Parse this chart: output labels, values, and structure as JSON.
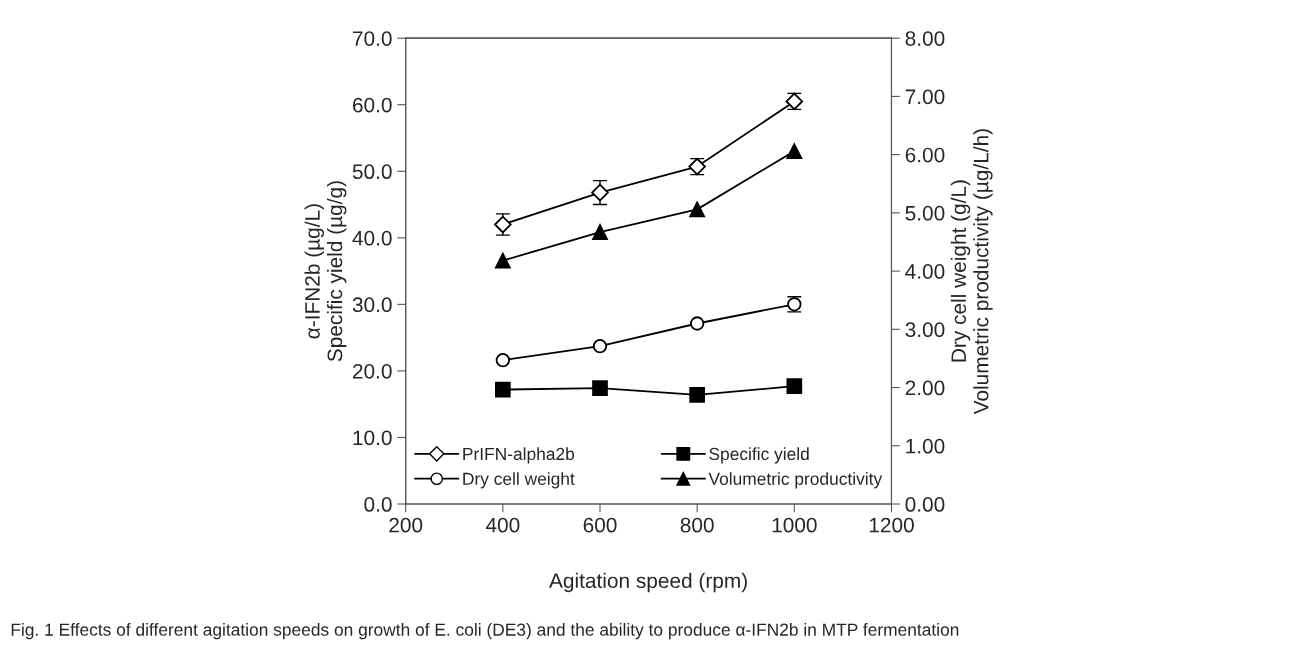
{
  "chart_data": {
    "type": "line",
    "x": [
      400,
      600,
      800,
      1000
    ],
    "xlabel": "Agitation speed (rpm)",
    "ylabel": "α-IFN2b (µg/L)\nSpecific yield (µg/g)",
    "y2label": "Dry cell weight (g/L)\nVolumetric productivity (µg/L/h)",
    "xlim": [
      200,
      1200
    ],
    "xticks": [
      200,
      400,
      600,
      800,
      1000,
      1200
    ],
    "ylim": [
      0,
      70
    ],
    "yticks": [
      {
        "value": 0,
        "label": "0.0"
      },
      {
        "value": 10,
        "label": "10.0"
      },
      {
        "value": 20,
        "label": "20.0"
      },
      {
        "value": 30,
        "label": "30.0"
      },
      {
        "value": 40,
        "label": "40.0"
      },
      {
        "value": 50,
        "label": "50.0"
      },
      {
        "value": 60,
        "label": "60.0"
      },
      {
        "value": 70,
        "label": "70.0"
      }
    ],
    "y2lim": [
      0,
      8
    ],
    "y2ticks": [
      {
        "value": 0,
        "label": "0.00"
      },
      {
        "value": 1,
        "label": "1.00"
      },
      {
        "value": 2,
        "label": "2.00"
      },
      {
        "value": 3,
        "label": "3.00"
      },
      {
        "value": 4,
        "label": "4.00"
      },
      {
        "value": 5,
        "label": "5.00"
      },
      {
        "value": 6,
        "label": "6.00"
      },
      {
        "value": 7,
        "label": "7.00"
      },
      {
        "value": 8,
        "label": "8.00"
      }
    ],
    "series": [
      {
        "name": "PrIFN-alpha2b",
        "color": "#000000",
        "marker": "diamond",
        "colors": [
          "#ffffff",
          "#ffffff",
          "#ffffff",
          "#ffffff"
        ],
        "values": [
          42.0,
          46.8,
          50.7,
          60.5
        ],
        "errors": [
          1.6,
          1.8,
          1.2,
          1.2
        ]
      },
      {
        "name": "Specific yield",
        "color": "#000000",
        "marker": "square",
        "colors": [
          "#000000",
          "#000000",
          "#000000",
          "#000000"
        ],
        "values": [
          17.2,
          17.4,
          16.4,
          17.7
        ]
      },
      {
        "name": "Dry cell weight",
        "color": "#000000",
        "marker": "circle",
        "colors": [
          "#ffffff",
          "#ffffff",
          "#ffffff",
          "#ffffff"
        ],
        "axis": "y2",
        "values": [
          2.47,
          2.71,
          3.1,
          3.43
        ],
        "errors": [
          null,
          null,
          null,
          0.13
        ]
      },
      {
        "name": "Volumetric productivity",
        "color": "#000000",
        "marker": "triangle",
        "colors": [
          "#000000",
          "#000000",
          "#000000",
          "#000000"
        ],
        "axis": "y2",
        "values": [
          4.18,
          4.67,
          5.06,
          6.06
        ]
      }
    ],
    "legend": "bottom",
    "grid": false,
    "line_style": "solid",
    "annotations": [
      "Fig. 1 Effects of different agitation speeds on growth of E. coli (DE3) and the ability to produce α-IFN2b in MTP fermentation"
    ]
  }
}
